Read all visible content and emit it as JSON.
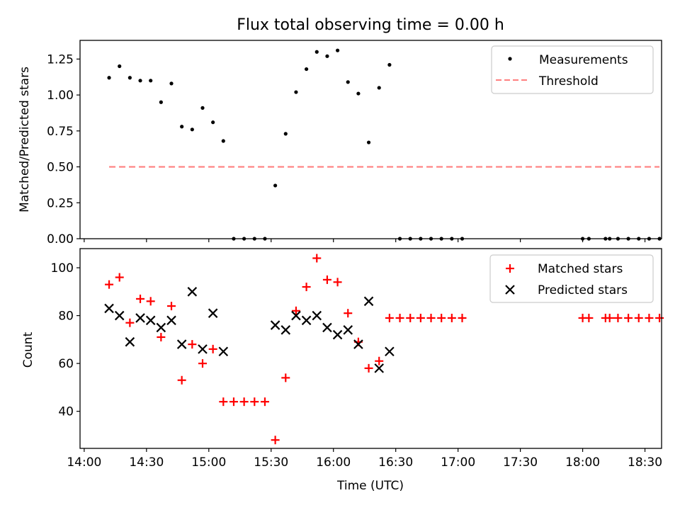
{
  "chart_data": [
    {
      "type": "scatter",
      "title": "Flux total observing time = 0.00 h",
      "xlabel": "",
      "ylabel": "Matched/Predicted stars",
      "ylim": [
        0,
        1.38
      ],
      "yticks": [
        0.0,
        0.25,
        0.5,
        0.75,
        1.0,
        1.25
      ],
      "ytick_labels": [
        "0.00",
        "0.25",
        "0.50",
        "0.75",
        "1.00",
        "1.25"
      ],
      "xlim_minutes_from_1400": [
        -2,
        278
      ],
      "legend_position": "top-right",
      "series": [
        {
          "name": "Measurements",
          "kind": "points",
          "color": "#000000",
          "x_minutes_from_1400": [
            12,
            17,
            22,
            27,
            32,
            37,
            42,
            47,
            52,
            57,
            62,
            67,
            72,
            77,
            82,
            87,
            92,
            97,
            102,
            107,
            112,
            117,
            122,
            127,
            132,
            137,
            142,
            147,
            152,
            157,
            162,
            167,
            172,
            177,
            182,
            240,
            243,
            251,
            253,
            257,
            262,
            267,
            272,
            277
          ],
          "y": [
            1.12,
            1.2,
            1.12,
            1.1,
            1.1,
            0.95,
            1.08,
            0.78,
            0.76,
            0.91,
            0.81,
            0.68,
            0.0,
            0.0,
            0.0,
            0.0,
            0.37,
            0.73,
            1.02,
            1.18,
            1.3,
            1.27,
            1.31,
            1.09,
            1.01,
            0.67,
            1.05,
            1.21,
            0.0,
            0.0,
            0.0,
            0.0,
            0.0,
            0.0,
            0.0,
            0.0,
            0.0,
            0.0,
            0.0,
            0.0,
            0.0,
            0.0,
            0.0,
            0.0
          ]
        },
        {
          "name": "Threshold",
          "kind": "dashed-line",
          "color": "#ff7f7f",
          "x_minutes_from_1400": [
            12,
            277
          ],
          "y": [
            0.5,
            0.5
          ]
        }
      ]
    },
    {
      "type": "scatter",
      "title": "",
      "xlabel": "Time (UTC)",
      "ylabel": "Count",
      "ylim": [
        24.5,
        108
      ],
      "yticks": [
        40,
        60,
        80,
        100
      ],
      "ytick_labels": [
        "40",
        "60",
        "80",
        "100"
      ],
      "xlim_minutes_from_1400": [
        -2,
        278
      ],
      "xticks_minutes_from_1400": [
        0,
        30,
        60,
        90,
        120,
        150,
        180,
        210,
        240,
        270
      ],
      "xtick_labels": [
        "14:00",
        "14:30",
        "15:00",
        "15:30",
        "16:00",
        "16:30",
        "17:00",
        "17:30",
        "18:00",
        "18:30"
      ],
      "legend_position": "top-right",
      "series": [
        {
          "name": "Matched stars",
          "kind": "plus",
          "color": "#ff0000",
          "x_minutes_from_1400": [
            12,
            17,
            22,
            27,
            32,
            37,
            42,
            47,
            52,
            57,
            62,
            67,
            72,
            77,
            82,
            87,
            92,
            97,
            102,
            107,
            112,
            117,
            122,
            127,
            132,
            137,
            142,
            147,
            152,
            157,
            162,
            167,
            172,
            177,
            182,
            240,
            243,
            251,
            253,
            257,
            262,
            267,
            272,
            277
          ],
          "y": [
            93,
            96,
            77,
            87,
            86,
            71,
            84,
            53,
            68,
            60,
            66,
            44,
            44,
            44,
            44,
            44,
            28,
            54,
            82,
            92,
            104,
            95,
            94,
            81,
            69,
            58,
            61,
            79,
            79,
            79,
            79,
            79,
            79,
            79,
            79,
            79,
            79,
            79,
            79,
            79,
            79,
            79,
            79,
            79
          ]
        },
        {
          "name": "Predicted stars",
          "kind": "cross",
          "color": "#000000",
          "x_minutes_from_1400": [
            12,
            17,
            22,
            27,
            32,
            37,
            42,
            47,
            52,
            57,
            62,
            67,
            92,
            97,
            102,
            107,
            112,
            117,
            122,
            127,
            132,
            137,
            142,
            147
          ],
          "y": [
            83,
            80,
            69,
            79,
            78,
            75,
            78,
            68,
            90,
            66,
            81,
            65,
            76,
            74,
            80,
            78,
            80,
            75,
            72,
            74,
            68,
            86,
            58,
            65
          ]
        }
      ]
    }
  ]
}
